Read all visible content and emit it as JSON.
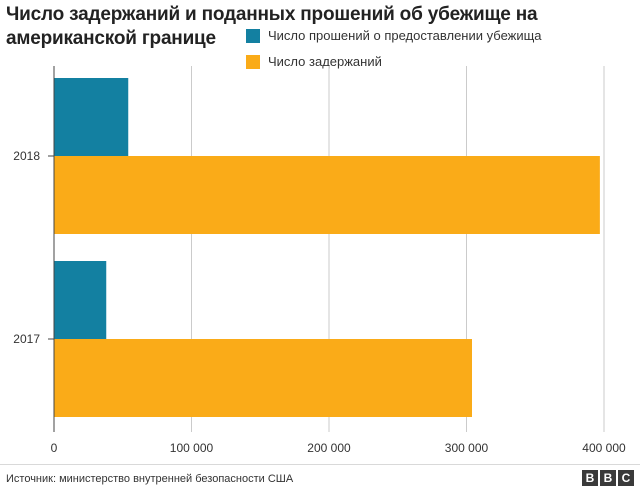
{
  "title": "Число задержаний и поданных прошений об убежище на американской границе",
  "source": "Источник: министерство внутренней безопасности США",
  "logo_letters": [
    "B",
    "B",
    "C"
  ],
  "colors": {
    "asylum": "#1380A1",
    "detentions": "#FAAB18",
    "gridline": "#cbcbcb",
    "axis": "#444444"
  },
  "chart_data": {
    "type": "bar",
    "orientation": "horizontal",
    "categories": [
      "2018",
      "2017"
    ],
    "series": [
      {
        "name": "Число прошений о предоставлении убежища",
        "values": [
          54000,
          38000
        ]
      },
      {
        "name": "Число задержаний",
        "values": [
          397000,
          304000
        ]
      }
    ],
    "xlim": [
      0,
      400000
    ],
    "xticks": [
      0,
      100000,
      200000,
      300000,
      400000
    ],
    "xtick_labels": [
      "0",
      "100 000",
      "200 000",
      "300 000",
      "400 000"
    ],
    "grid": true,
    "legend_position": "top-right"
  }
}
